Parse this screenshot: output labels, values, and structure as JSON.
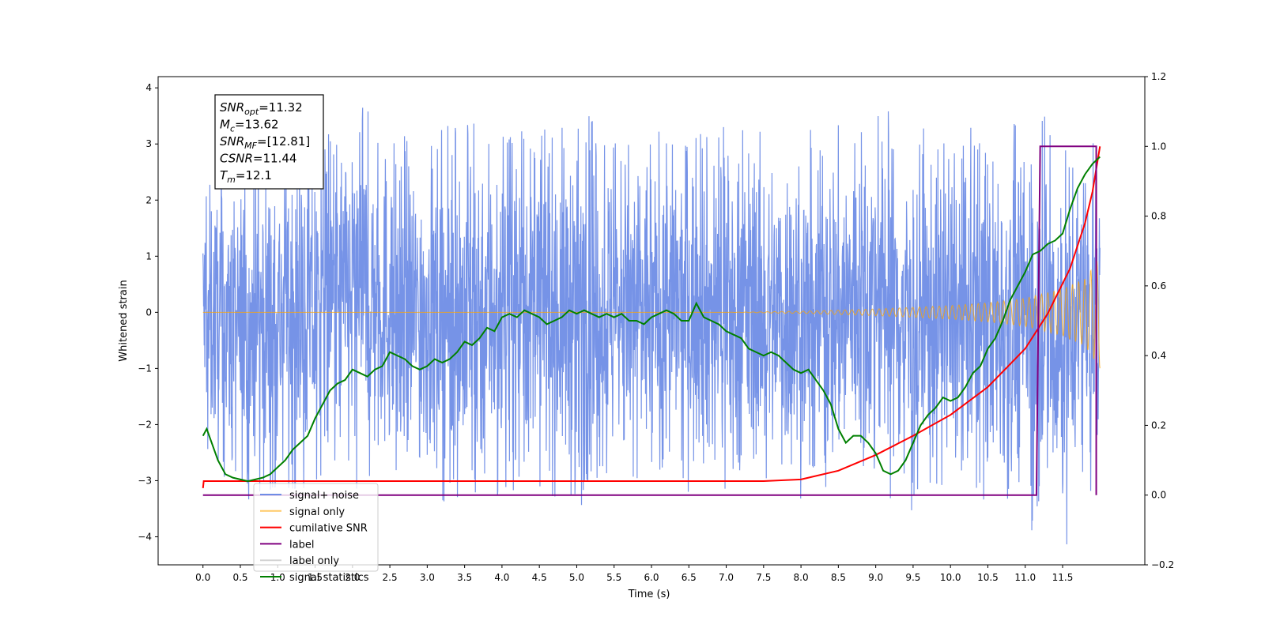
{
  "chart_data": {
    "type": "line",
    "xlabel": "Time (s)",
    "ylabel": "Whitened strain",
    "xlim": [
      -0.6,
      12.6
    ],
    "ylim": [
      -4.5,
      4.2
    ],
    "y2lim": [
      -0.2,
      1.2
    ],
    "x_ticks": [
      0.0,
      0.5,
      1.0,
      1.5,
      2.0,
      2.5,
      3.0,
      3.5,
      4.0,
      4.5,
      5.0,
      5.5,
      6.0,
      6.5,
      7.0,
      7.5,
      8.0,
      8.5,
      9.0,
      9.5,
      10.0,
      10.5,
      11.0,
      11.5
    ],
    "x_tick_labels": [
      "0.0",
      "0.5",
      "1.0",
      "1.5",
      "2.0",
      "2.5",
      "3.0",
      "3.5",
      "4.0",
      "4.5",
      "5.0",
      "5.5",
      "6.0",
      "6.5",
      "7.0",
      "7.5",
      "8.0",
      "8.5",
      "9.0",
      "9.5",
      "10.0",
      "10.5",
      "11.0",
      "11.5"
    ],
    "y_ticks": [
      -4,
      -3,
      -2,
      -1,
      0,
      1,
      2,
      3,
      4
    ],
    "y_tick_labels": [
      "−4",
      "−3",
      "−2",
      "−1",
      "0",
      "1",
      "2",
      "3",
      "4"
    ],
    "y2_ticks": [
      -0.2,
      0.0,
      0.2,
      0.4,
      0.6,
      0.8,
      1.0,
      1.2
    ],
    "y2_tick_labels": [
      "−0.2",
      "0.0",
      "0.2",
      "0.4",
      "0.6",
      "0.8",
      "1.0",
      "1.2"
    ],
    "grid": false,
    "legend_position": "bottom-left",
    "annotation": [
      {
        "name": "SNR",
        "sub": "opt",
        "value": "=11.32"
      },
      {
        "name": "M",
        "sub": "c",
        "value": "=13.62"
      },
      {
        "name": "SNR",
        "sub": "MF",
        "value": "=[12.81]"
      },
      {
        "name": "CSNR",
        "sub": "",
        "value": "=11.44"
      },
      {
        "name": "T",
        "sub": "m",
        "value": "=12.1"
      }
    ],
    "series": [
      {
        "name": "signal+ noise",
        "axis": "left",
        "color": "#6f8de6",
        "note": "dense noisy strain, envelope values",
        "x": [
          0.0,
          0.5,
          1.0,
          1.5,
          2.0,
          2.5,
          3.0,
          3.5,
          4.0,
          4.5,
          5.0,
          5.5,
          6.0,
          6.5,
          7.0,
          7.5,
          8.0,
          8.5,
          9.0,
          9.5,
          10.0,
          10.5,
          11.0,
          11.5,
          12.0
        ],
        "upper": [
          2.5,
          2.6,
          3.0,
          3.1,
          3.8,
          3.3,
          3.1,
          3.5,
          3.8,
          3.2,
          3.6,
          3.3,
          3.2,
          3.3,
          3.3,
          3.2,
          3.2,
          3.3,
          3.8,
          3.3,
          3.1,
          3.2,
          3.5,
          3.3,
          2.5
        ],
        "lower": [
          -2.5,
          -3.4,
          -3.1,
          -3.2,
          -3.2,
          -3.0,
          -3.1,
          -3.7,
          -3.2,
          -3.1,
          -3.6,
          -3.2,
          -3.1,
          -3.2,
          -3.2,
          -3.1,
          -3.3,
          -3.3,
          -3.1,
          -3.7,
          -3.3,
          -3.4,
          -3.5,
          -4.1,
          -2.2
        ]
      },
      {
        "name": "signal only",
        "axis": "left",
        "color": "#ffa500",
        "note": "chirp envelope amplitude",
        "x": [
          0.0,
          7.0,
          8.0,
          9.0,
          10.0,
          10.5,
          11.0,
          11.5,
          11.8,
          12.0
        ],
        "amplitude": [
          0.0,
          0.0,
          0.02,
          0.06,
          0.12,
          0.17,
          0.25,
          0.42,
          0.6,
          1.0
        ]
      },
      {
        "name": "cumilative SNR",
        "axis": "right",
        "color": "#ff0000",
        "x": [
          0.0,
          0.01,
          2.0,
          4.0,
          6.0,
          7.5,
          8.0,
          8.5,
          9.0,
          9.5,
          10.0,
          10.5,
          11.0,
          11.3,
          11.6,
          11.8,
          11.9,
          12.0
        ],
        "values": [
          0.02,
          0.04,
          0.04,
          0.04,
          0.04,
          0.04,
          0.045,
          0.07,
          0.115,
          0.17,
          0.23,
          0.31,
          0.42,
          0.52,
          0.65,
          0.78,
          0.87,
          1.0
        ]
      },
      {
        "name": "label",
        "axis": "right",
        "color": "#800080",
        "x": [
          0.0,
          11.15,
          11.2,
          11.95,
          11.95
        ],
        "values": [
          0.0,
          0.0,
          1.0,
          1.0,
          0.0
        ]
      },
      {
        "name": "label only",
        "axis": "right",
        "color": "#d3d3d3",
        "hidden": true
      },
      {
        "name": "signal statistics",
        "axis": "right",
        "color": "#008000",
        "x": [
          0.0,
          0.05,
          0.1,
          0.2,
          0.3,
          0.4,
          0.5,
          0.6,
          0.7,
          0.8,
          0.9,
          1.0,
          1.1,
          1.2,
          1.3,
          1.4,
          1.5,
          1.6,
          1.7,
          1.8,
          1.9,
          2.0,
          2.1,
          2.2,
          2.3,
          2.4,
          2.5,
          2.6,
          2.7,
          2.8,
          2.9,
          3.0,
          3.1,
          3.2,
          3.3,
          3.4,
          3.5,
          3.6,
          3.7,
          3.8,
          3.9,
          4.0,
          4.1,
          4.2,
          4.3,
          4.4,
          4.5,
          4.6,
          4.7,
          4.8,
          4.9,
          5.0,
          5.1,
          5.2,
          5.3,
          5.4,
          5.5,
          5.6,
          5.7,
          5.8,
          5.9,
          6.0,
          6.1,
          6.2,
          6.3,
          6.4,
          6.5,
          6.6,
          6.7,
          6.8,
          6.9,
          7.0,
          7.1,
          7.2,
          7.3,
          7.4,
          7.5,
          7.6,
          7.7,
          7.8,
          7.9,
          8.0,
          8.1,
          8.2,
          8.3,
          8.4,
          8.5,
          8.6,
          8.7,
          8.8,
          8.9,
          9.0,
          9.1,
          9.2,
          9.3,
          9.4,
          9.5,
          9.6,
          9.7,
          9.8,
          9.9,
          10.0,
          10.1,
          10.2,
          10.3,
          10.4,
          10.5,
          10.6,
          10.7,
          10.8,
          10.9,
          11.0,
          11.1,
          11.2,
          11.3,
          11.4,
          11.5,
          11.6,
          11.7,
          11.8,
          11.9,
          12.0
        ],
        "values": [
          0.17,
          0.19,
          0.16,
          0.1,
          0.06,
          0.05,
          0.045,
          0.04,
          0.045,
          0.05,
          0.06,
          0.08,
          0.1,
          0.13,
          0.15,
          0.17,
          0.22,
          0.26,
          0.3,
          0.32,
          0.33,
          0.36,
          0.35,
          0.34,
          0.36,
          0.37,
          0.41,
          0.4,
          0.39,
          0.37,
          0.36,
          0.37,
          0.39,
          0.38,
          0.39,
          0.41,
          0.44,
          0.43,
          0.45,
          0.48,
          0.47,
          0.51,
          0.52,
          0.51,
          0.53,
          0.52,
          0.51,
          0.49,
          0.5,
          0.51,
          0.53,
          0.52,
          0.53,
          0.52,
          0.51,
          0.52,
          0.51,
          0.52,
          0.5,
          0.5,
          0.49,
          0.51,
          0.52,
          0.53,
          0.52,
          0.5,
          0.5,
          0.55,
          0.51,
          0.5,
          0.49,
          0.47,
          0.46,
          0.45,
          0.42,
          0.41,
          0.4,
          0.41,
          0.4,
          0.38,
          0.36,
          0.35,
          0.36,
          0.33,
          0.3,
          0.26,
          0.19,
          0.15,
          0.17,
          0.17,
          0.15,
          0.12,
          0.07,
          0.06,
          0.07,
          0.1,
          0.15,
          0.2,
          0.23,
          0.25,
          0.28,
          0.27,
          0.28,
          0.31,
          0.35,
          0.37,
          0.42,
          0.45,
          0.5,
          0.56,
          0.6,
          0.64,
          0.69,
          0.7,
          0.72,
          0.73,
          0.75,
          0.82,
          0.88,
          0.92,
          0.95,
          0.97
        ]
      }
    ]
  }
}
